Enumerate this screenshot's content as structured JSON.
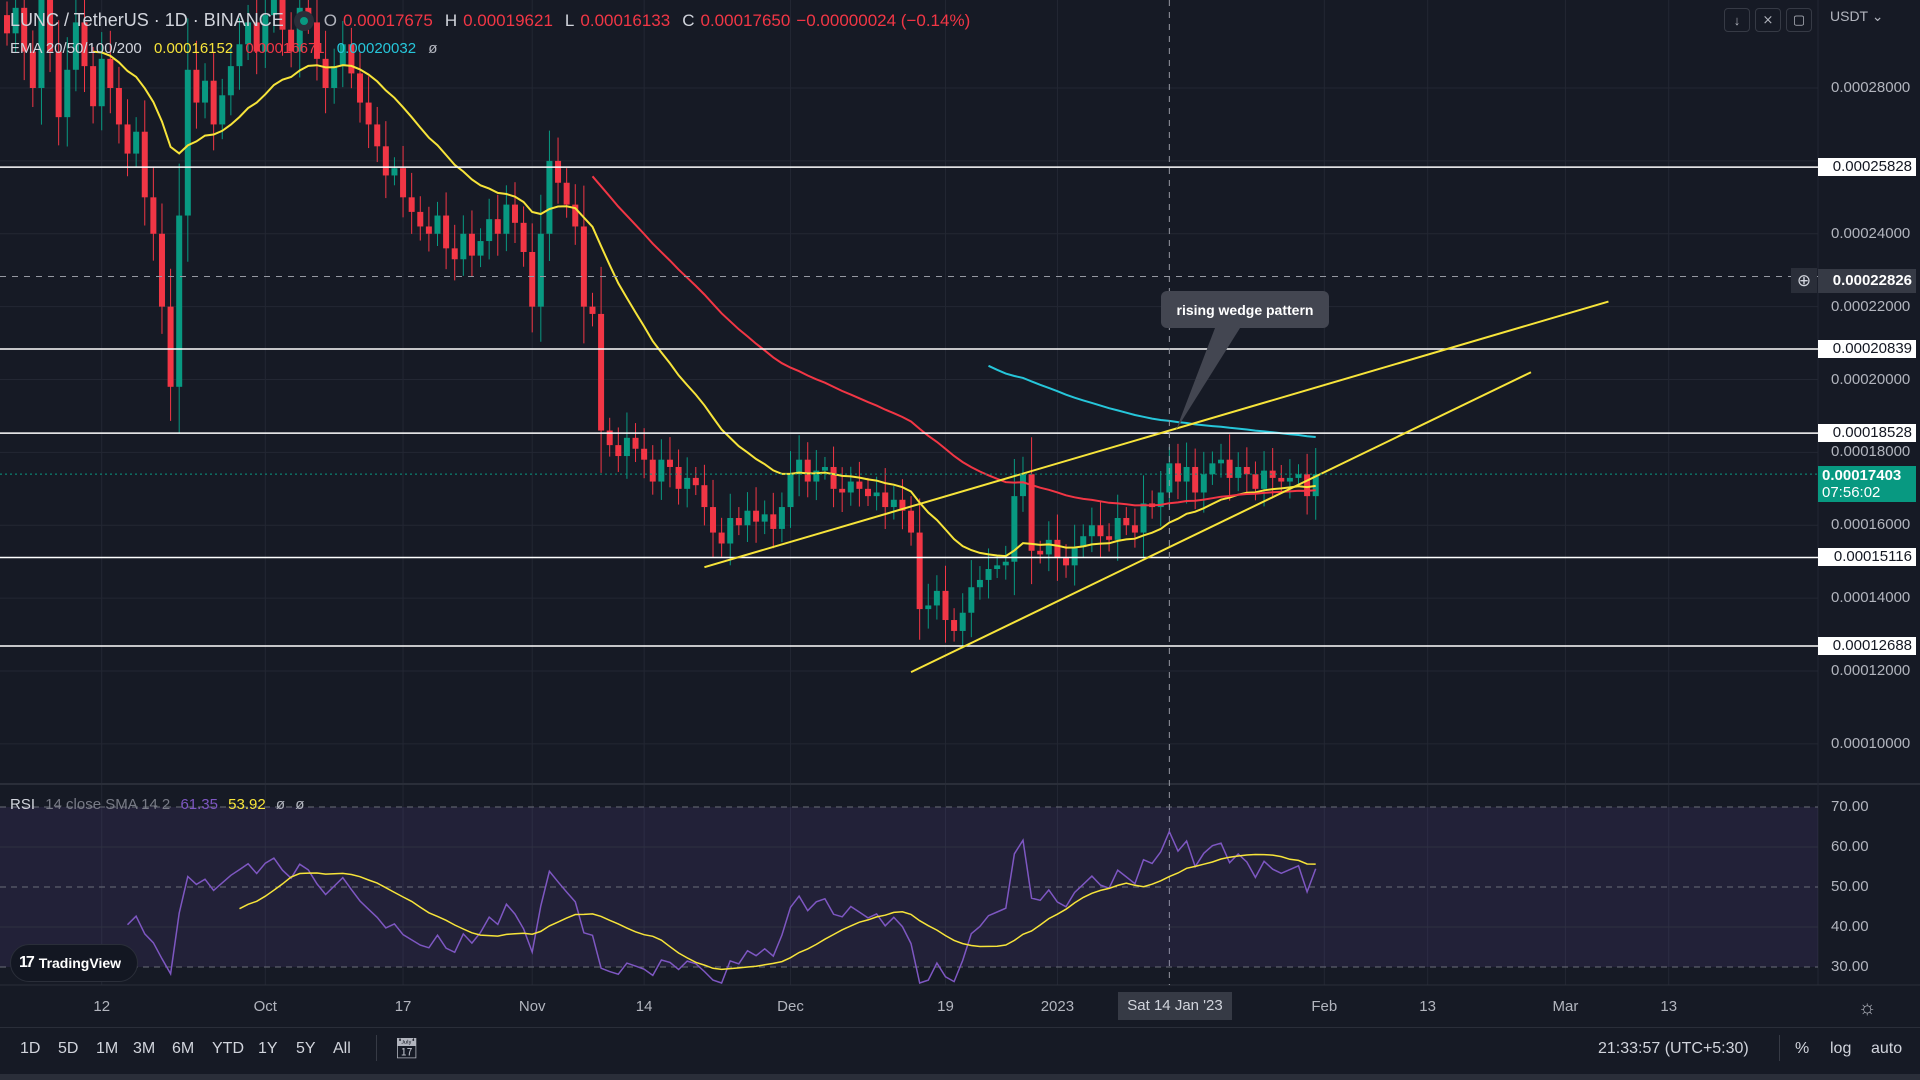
{
  "header": {
    "symbol": "LUNC / TetherUS · 1D · BINANCE",
    "o_label": "O",
    "o": "0.00017675",
    "h_label": "H",
    "h": "0.00019621",
    "l_label": "L",
    "l": "0.00016133",
    "c_label": "C",
    "c": "0.00017650",
    "change": "−0.00000024 (−0.14%)"
  },
  "ema_legend": {
    "label": "EMA 20/50/100/200",
    "ema20": "0.00016152",
    "ema50": "0.00016671",
    "ema100": "0.00020032",
    "ema200": "ø"
  },
  "rsi_legend": {
    "label": "RSI",
    "params": "14 close SMA 14 2",
    "rsi": "61.35",
    "sma": "53.92",
    "v3": "ø",
    "v4": "ø"
  },
  "toolbar_top": {
    "currency": "USDT",
    "currency_icon": "chevron-down-icon"
  },
  "colors": {
    "background": "#161a25",
    "up": "#089981",
    "down": "#f23645",
    "ema20": "#f7e43a",
    "ema50": "#f23645",
    "ema100": "#26c6da",
    "rsi": "#7e57c2",
    "rsi_sma": "#f7e43a",
    "trendline": "#f7e43a"
  },
  "chart_data": {
    "type": "candlestick",
    "scale": "1e-5 USDT",
    "candles_by_month": [
      {
        "month": "2022-09",
        "close": [
          29.5,
          30.2,
          29.0,
          28.0,
          30.5,
          29.0,
          27.2,
          28.5,
          29.8,
          28.6,
          27.5,
          28.8,
          28.0,
          27.0,
          26.2,
          26.8,
          25.0,
          24.0,
          22.0,
          19.8,
          24.5,
          28.5,
          27.6,
          28.2,
          27.0,
          27.8,
          28.6,
          29.2,
          29.8,
          29.0
        ]
      },
      {
        "month": "2022-10",
        "close": [
          30.0,
          30.5,
          29.6,
          29.0,
          30.2,
          29.8,
          28.8,
          28.0,
          28.6,
          29.2,
          28.4,
          27.6,
          27.0,
          26.4,
          25.6,
          25.8,
          25.0,
          24.6,
          24.2,
          24.0,
          24.5,
          23.6,
          23.3,
          24.0,
          23.4,
          23.8,
          24.4,
          24.0,
          24.8,
          24.3,
          23.5
        ]
      },
      {
        "month": "2022-11",
        "close": [
          22.0,
          24.0,
          26.0,
          25.4,
          24.8,
          24.2,
          22.0,
          21.8,
          18.6,
          18.2,
          17.9,
          18.4,
          18.1,
          17.8,
          17.2,
          17.8,
          17.6,
          17.0,
          17.3,
          17.1,
          16.5,
          15.8,
          15.5,
          16.2,
          16.0,
          16.4,
          16.1,
          16.3,
          15.9,
          16.5
        ]
      },
      {
        "month": "2022-12",
        "close": [
          17.4,
          17.8,
          17.2,
          17.5,
          17.6,
          17.0,
          16.9,
          17.2,
          17.0,
          16.8,
          16.9,
          16.5,
          16.7,
          16.4,
          15.8,
          13.7,
          13.8,
          14.2,
          13.4,
          13.1,
          13.6,
          14.3,
          14.5,
          14.8,
          14.9,
          15.0,
          16.8,
          17.4,
          15.3,
          15.2,
          15.6
        ]
      },
      {
        "month": "2023-01",
        "close": [
          15.1,
          14.9,
          15.4,
          15.7,
          16.0,
          15.7,
          15.6,
          16.2,
          16.0,
          15.8,
          16.6,
          16.5,
          16.9,
          17.7,
          17.2,
          17.6,
          16.9,
          17.4,
          17.7,
          17.8,
          17.3,
          17.6,
          17.4,
          17.0,
          17.5,
          17.3,
          17.2,
          17.3,
          17.4,
          16.8,
          17.4
        ]
      }
    ],
    "price_ticks": [
      "0.00028000",
      "0.00024000",
      "0.00022000",
      "0.00020000",
      "0.00018000",
      "0.00016000",
      "0.00014000",
      "0.00012000",
      "0.00010000"
    ],
    "horizontal_levels": [
      "0.00025828",
      "0.00020839",
      "0.00018528",
      "0.00015116",
      "0.00012688"
    ],
    "crosshair_price": "0.00022826",
    "crosshair_date": "Sat 14 Jan '23",
    "last_price": "0.00017403",
    "countdown": "07:56:02",
    "trendlines": [
      {
        "from": [
          "2022-11-21",
          14.85
        ],
        "to": [
          "2023-03-06",
          22.14
        ]
      },
      {
        "from": [
          "2022-12-15",
          11.97
        ],
        "to": [
          "2023-02-25",
          20.2
        ]
      }
    ],
    "annotation": "rising wedge pattern",
    "time_ticks": [
      {
        "label": "12",
        "date": "2022-09-12"
      },
      {
        "label": "Oct",
        "date": "2022-10-01"
      },
      {
        "label": "17",
        "date": "2022-10-17"
      },
      {
        "label": "Nov",
        "date": "2022-11-01"
      },
      {
        "label": "14",
        "date": "2022-11-14"
      },
      {
        "label": "Dec",
        "date": "2022-12-01"
      },
      {
        "label": "19",
        "date": "2022-12-19"
      },
      {
        "label": "2023",
        "date": "2023-01-01"
      },
      {
        "label": "Feb",
        "date": "2023-02-01"
      },
      {
        "label": "13",
        "date": "2023-02-13"
      },
      {
        "label": "Mar",
        "date": "2023-03-01"
      },
      {
        "label": "13",
        "date": "2023-03-13"
      }
    ],
    "rsi_ticks": [
      "70.00",
      "60.00",
      "50.00",
      "40.00",
      "30.00"
    ],
    "rsi_range": [
      30,
      70
    ]
  },
  "bottom_toolbar": {
    "ranges": [
      "1D",
      "5D",
      "1M",
      "3M",
      "6M",
      "YTD",
      "1Y",
      "5Y",
      "All"
    ],
    "clock": "21:33:57 (UTC+5:30)",
    "percent": "%",
    "log": "log",
    "auto": "auto"
  },
  "brand": "TradingView"
}
